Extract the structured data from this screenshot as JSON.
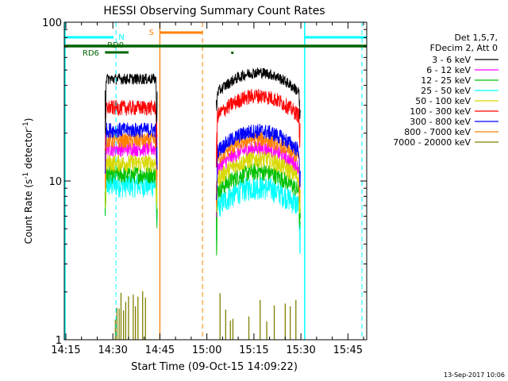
{
  "chart_data": {
    "type": "line",
    "title": "HESSI Observing Summary Count Rates",
    "xlabel": "Start Time (09-Oct-15 14:09:22)",
    "ylabel_main": "Count Rate (s",
    "ylabel_sup1": "-1",
    "ylabel_mid": " detector",
    "ylabel_sup2": "-1",
    "ylabel_end": ")",
    "xlim_minutes": [
      14.5,
      111.0
    ],
    "ylim": [
      1,
      100
    ],
    "y_scale": "log",
    "x_ticks": [
      {
        "label": "14:15",
        "minutes": 15
      },
      {
        "label": "14:30",
        "minutes": 30
      },
      {
        "label": "14:45",
        "minutes": 45
      },
      {
        "label": "15:00",
        "minutes": 60
      },
      {
        "label": "15:15",
        "minutes": 75
      },
      {
        "label": "15:30",
        "minutes": 90
      },
      {
        "label": "15:45",
        "minutes": 105
      }
    ],
    "y_ticks": [
      {
        "label": "1",
        "value": 1
      },
      {
        "label": "10",
        "value": 10
      },
      {
        "label": "100",
        "value": 100
      }
    ],
    "legend_header": [
      "Det 1,5,7,",
      "FDecim 2, Att 0"
    ],
    "series": [
      {
        "name": "3 - 6 keV",
        "color": "#000000",
        "seg1": 44,
        "seg2": 42,
        "noise": 0.05
      },
      {
        "name": "6 - 12 keV",
        "color": "#ff00ff",
        "seg1": 16,
        "seg2": 14,
        "noise": 0.07
      },
      {
        "name": "12 - 25 keV",
        "color": "#00c000",
        "seg1": 11,
        "seg2": 10,
        "noise": 0.08
      },
      {
        "name": "25 - 50 keV",
        "color": "#00ffff",
        "seg1": 9.5,
        "seg2": 8,
        "noise": 0.11
      },
      {
        "name": "50 - 100 keV",
        "color": "#d8d800",
        "seg1": 13,
        "seg2": 12,
        "noise": 0.08
      },
      {
        "name": "100 - 300 keV",
        "color": "#ff0000",
        "seg1": 29,
        "seg2": 30,
        "noise": 0.07
      },
      {
        "name": "300 - 800 keV",
        "color": "#0000ff",
        "seg1": 21,
        "seg2": 18,
        "noise": 0.07
      },
      {
        "name": "800 - 7000 keV",
        "color": "#ff8000",
        "seg1": 18,
        "seg2": 16,
        "noise": 0.07
      },
      {
        "name": "7000 - 20000 keV",
        "color": "#808000",
        "seg1": 1.4,
        "seg2": 1.4,
        "noise": 0.15
      }
    ],
    "annotations": {
      "N": {
        "label": "N",
        "color": "#00ffff"
      },
      "S": {
        "label": "S",
        "color": "#ff8000"
      },
      "RD0": {
        "label": "RD0",
        "color": "#006400"
      },
      "RD6": {
        "label": "RD6",
        "color": "#006400"
      }
    },
    "grid": false,
    "legend_position": "right"
  },
  "footer": {
    "date": "13-Sep-2017 10:06"
  }
}
